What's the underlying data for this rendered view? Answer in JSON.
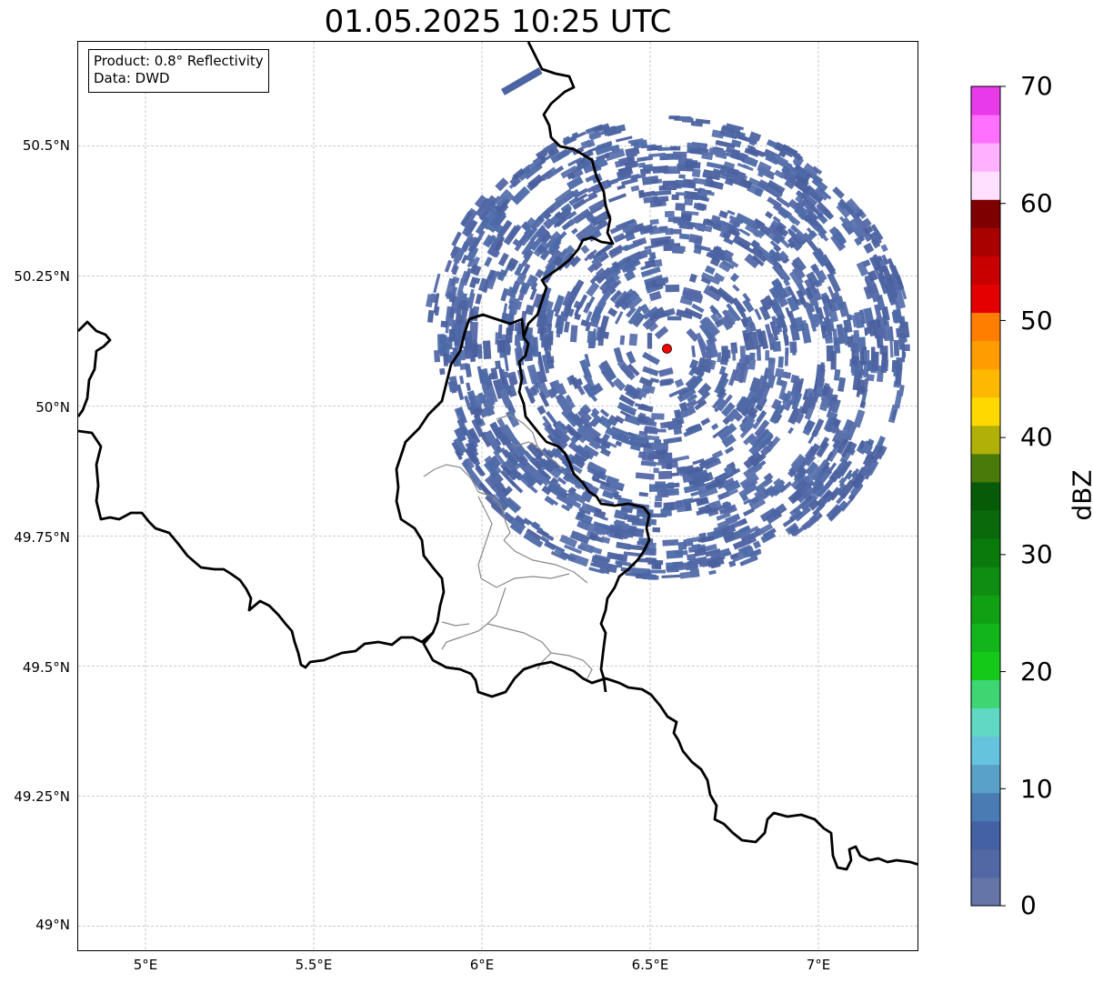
{
  "title": "01.05.2025 10:25 UTC",
  "info": {
    "product": "Product: 0.8° Reflectivity",
    "data_source": "Data: DWD"
  },
  "map": {
    "lon_range": [
      4.8,
      7.3
    ],
    "lat_range": [
      48.95,
      50.7
    ],
    "x_ticks": [
      "5°E",
      "5.5°E",
      "6°E",
      "6.5°E",
      "7°E"
    ],
    "y_ticks": [
      "50.5°N",
      "50.25°N",
      "50°N",
      "49.75°N",
      "49.5°N",
      "49.25°N",
      "49°N"
    ],
    "gridlines": true,
    "radar_site": {
      "lon": 6.55,
      "lat": 50.11,
      "marker_color": "#ff0000"
    },
    "coverage_color": "#4c64a2"
  },
  "colorbar": {
    "label": "dBZ",
    "ticks": [
      "70",
      "60",
      "50",
      "40",
      "30",
      "20",
      "10",
      "0"
    ],
    "range": [
      0,
      70
    ],
    "colors": [
      "#6575a8",
      "#5168a4",
      "#4561a6",
      "#4a7bb3",
      "#5aa1c9",
      "#66c3de",
      "#5fd9c4",
      "#3dd672",
      "#14c918",
      "#12b51a",
      "#119f14",
      "#0f8c12",
      "#0a7a0d",
      "#0a6a0b",
      "#075a08",
      "#4a7a0a",
      "#b0b008",
      "#ffd800",
      "#ffb800",
      "#ff9c00",
      "#ff7e00",
      "#e50000",
      "#c80000",
      "#a90000",
      "#7f0000",
      "#ffe0ff",
      "#ffb0ff",
      "#ff70ff",
      "#e83ae8"
    ]
  }
}
